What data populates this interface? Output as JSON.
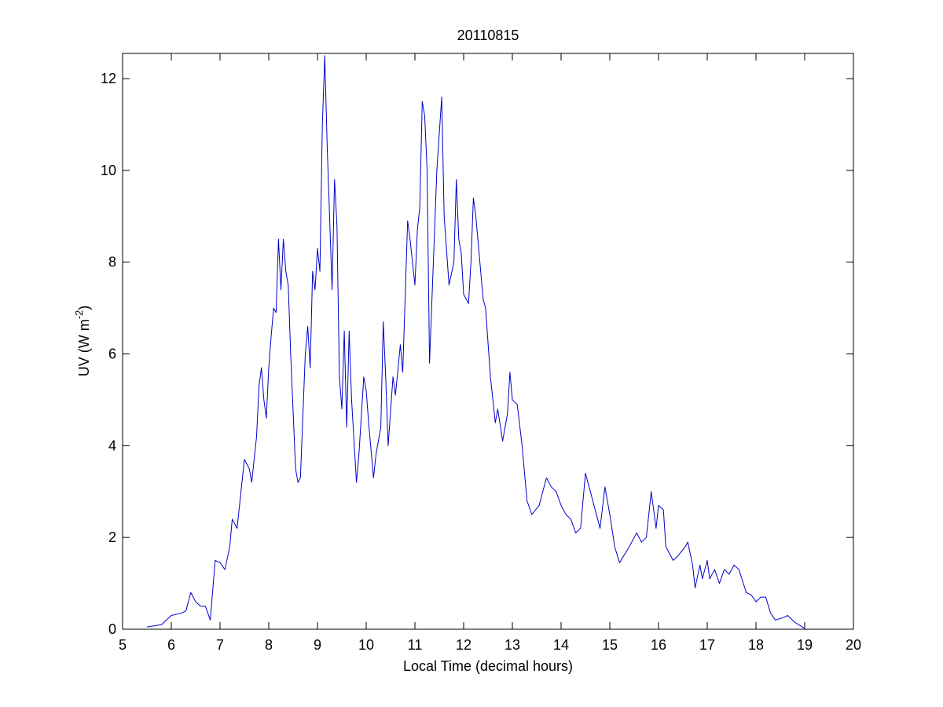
{
  "chart_data": {
    "type": "line",
    "title": "20110815",
    "xlabel": "Local Time (decimal hours)",
    "ylabel": {
      "text": "UV (W m",
      "superscript": "-2",
      "suffix": ")"
    },
    "xlim": [
      5,
      20
    ],
    "xticks": [
      5,
      6,
      7,
      8,
      9,
      10,
      11,
      12,
      13,
      14,
      15,
      16,
      17,
      18,
      19,
      20
    ],
    "ylim": [
      0,
      12.55
    ],
    "yticks": [
      0,
      2,
      4,
      6,
      8,
      10,
      12
    ],
    "grid": false,
    "series": [
      {
        "color": "#0000cc",
        "x": [
          5.5,
          5.8,
          6.0,
          6.2,
          6.3,
          6.4,
          6.5,
          6.6,
          6.7,
          6.8,
          6.9,
          7.0,
          7.1,
          7.2,
          7.25,
          7.35,
          7.5,
          7.6,
          7.65,
          7.75,
          7.8,
          7.85,
          7.9,
          7.95,
          8.0,
          8.05,
          8.1,
          8.15,
          8.2,
          8.25,
          8.3,
          8.35,
          8.4,
          8.45,
          8.55,
          8.6,
          8.65,
          8.75,
          8.8,
          8.85,
          8.9,
          8.95,
          9.0,
          9.05,
          9.1,
          9.15,
          9.2,
          9.3,
          9.35,
          9.4,
          9.45,
          9.5,
          9.55,
          9.6,
          9.65,
          9.7,
          9.8,
          9.85,
          9.95,
          10.0,
          10.05,
          10.15,
          10.2,
          10.3,
          10.35,
          10.4,
          10.45,
          10.55,
          10.6,
          10.7,
          10.75,
          10.85,
          10.9,
          11.0,
          11.05,
          11.1,
          11.15,
          11.2,
          11.25,
          11.3,
          11.35,
          11.45,
          11.55,
          11.6,
          11.7,
          11.8,
          11.85,
          11.9,
          11.95,
          12.0,
          12.1,
          12.15,
          12.2,
          12.25,
          12.35,
          12.4,
          12.45,
          12.55,
          12.6,
          12.65,
          12.7,
          12.8,
          12.9,
          12.95,
          13.0,
          13.1,
          13.2,
          13.3,
          13.4,
          13.55,
          13.7,
          13.8,
          13.9,
          14.0,
          14.1,
          14.2,
          14.3,
          14.4,
          14.5,
          14.6,
          14.7,
          14.8,
          14.9,
          15.0,
          15.1,
          15.2,
          15.4,
          15.55,
          15.65,
          15.75,
          15.85,
          15.95,
          16.0,
          16.1,
          16.15,
          16.3,
          16.4,
          16.55,
          16.6,
          16.7,
          16.75,
          16.85,
          16.9,
          17.0,
          17.05,
          17.15,
          17.25,
          17.35,
          17.45,
          17.55,
          17.65,
          17.8,
          17.9,
          18.0,
          18.1,
          18.2,
          18.3,
          18.4,
          18.55,
          18.65,
          18.8,
          18.95,
          19.0
        ],
        "values": [
          0.05,
          0.1,
          0.3,
          0.35,
          0.4,
          0.8,
          0.6,
          0.5,
          0.5,
          0.2,
          1.5,
          1.45,
          1.3,
          1.8,
          2.4,
          2.2,
          3.7,
          3.5,
          3.2,
          4.2,
          5.3,
          5.7,
          5.0,
          4.6,
          5.7,
          6.4,
          7.0,
          6.9,
          8.5,
          7.4,
          8.5,
          7.8,
          7.5,
          6.0,
          3.5,
          3.2,
          3.3,
          6.0,
          6.6,
          5.7,
          7.8,
          7.4,
          8.3,
          7.8,
          11.0,
          12.5,
          10.5,
          7.4,
          9.8,
          8.8,
          5.5,
          4.8,
          6.5,
          4.4,
          6.5,
          5.0,
          3.2,
          3.8,
          5.5,
          5.2,
          4.5,
          3.3,
          3.8,
          4.4,
          6.7,
          5.5,
          4.0,
          5.5,
          5.1,
          6.2,
          5.6,
          8.9,
          8.5,
          7.5,
          8.7,
          9.2,
          11.5,
          11.2,
          10.0,
          5.8,
          7.2,
          10.0,
          11.6,
          9.0,
          7.5,
          8.0,
          9.8,
          8.5,
          8.2,
          7.3,
          7.1,
          8.0,
          9.4,
          9.0,
          7.8,
          7.2,
          7.0,
          5.5,
          5.0,
          4.5,
          4.8,
          4.1,
          4.7,
          5.6,
          5.0,
          4.9,
          4.0,
          2.8,
          2.5,
          2.7,
          3.3,
          3.1,
          3.0,
          2.7,
          2.5,
          2.4,
          2.1,
          2.2,
          3.4,
          3.0,
          2.6,
          2.2,
          3.1,
          2.5,
          1.8,
          1.45,
          1.8,
          2.1,
          1.9,
          2.0,
          3.0,
          2.2,
          2.7,
          2.6,
          1.8,
          1.5,
          1.6,
          1.8,
          1.9,
          1.4,
          0.9,
          1.4,
          1.1,
          1.5,
          1.1,
          1.3,
          1.0,
          1.3,
          1.2,
          1.4,
          1.3,
          0.8,
          0.75,
          0.6,
          0.7,
          0.7,
          0.35,
          0.2,
          0.25,
          0.3,
          0.15,
          0.05,
          0.02
        ]
      }
    ]
  }
}
